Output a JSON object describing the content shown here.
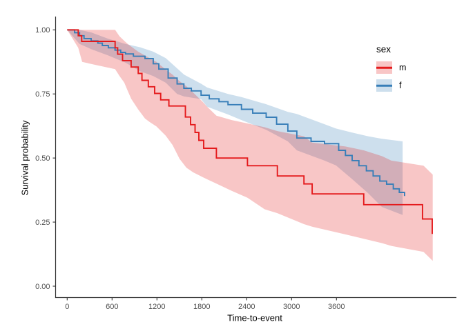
{
  "figure": {
    "background": "#ffffff"
  },
  "axis_colors": {
    "line": "#333333",
    "tick_text": "#4d4d4d",
    "title_text": "#000000"
  },
  "chart_data": {
    "type": "line",
    "subtype": "kaplan-meier-step-with-confidence-bands",
    "title": "",
    "xlabel": "Time-to-event",
    "ylabel": "Survival probability",
    "legend_title": "sex",
    "legend_position": "right-top",
    "grid": false,
    "theme": "classic",
    "xlim": [
      0,
      5200
    ],
    "ylim": [
      0,
      1.0
    ],
    "x_ticks": [
      0,
      600,
      1200,
      1800,
      2400,
      3000,
      3600
    ],
    "x_tick_labels": [
      "0",
      "600",
      "1200",
      "1800",
      "2400",
      "3000",
      "3600"
    ],
    "y_ticks": [
      0,
      0.25,
      0.5,
      0.75,
      1
    ],
    "y_tick_labels": [
      "0.00",
      "0.25",
      "0.50",
      "0.75",
      "1.00"
    ],
    "band_fill_opacity": 0.25,
    "series": [
      {
        "name": "m",
        "color": "#E41A1C",
        "steps": [
          [
            0,
            1.0
          ],
          [
            148,
            0.977
          ],
          [
            194,
            0.955
          ],
          [
            641,
            0.93
          ],
          [
            675,
            0.905
          ],
          [
            740,
            0.88
          ],
          [
            855,
            0.855
          ],
          [
            950,
            0.83
          ],
          [
            1000,
            0.803
          ],
          [
            1085,
            0.778
          ],
          [
            1170,
            0.752
          ],
          [
            1250,
            0.727
          ],
          [
            1360,
            0.703
          ],
          [
            1580,
            0.66
          ],
          [
            1650,
            0.63
          ],
          [
            1710,
            0.6
          ],
          [
            1760,
            0.569
          ],
          [
            1825,
            0.538
          ],
          [
            1995,
            0.5
          ],
          [
            2410,
            0.47
          ],
          [
            2810,
            0.43
          ],
          [
            3165,
            0.399
          ],
          [
            3275,
            0.36
          ],
          [
            3965,
            0.318
          ],
          [
            4750,
            0.262
          ],
          [
            4880,
            0.204
          ]
        ],
        "band": [
          [
            0,
            1.0,
            1.0
          ],
          [
            148,
            0.93,
            1.0
          ],
          [
            200,
            0.875,
            1.0
          ],
          [
            400,
            0.862,
            1.0
          ],
          [
            641,
            0.847,
            1.0
          ],
          [
            700,
            0.82,
            0.975
          ],
          [
            763,
            0.794,
            0.957
          ],
          [
            810,
            0.762,
            0.945
          ],
          [
            856,
            0.731,
            0.935
          ],
          [
            948,
            0.69,
            0.915
          ],
          [
            1040,
            0.654,
            0.9
          ],
          [
            1100,
            0.641,
            0.89
          ],
          [
            1194,
            0.623,
            0.875
          ],
          [
            1317,
            0.587,
            0.845
          ],
          [
            1409,
            0.551,
            0.825
          ],
          [
            1502,
            0.497,
            0.8
          ],
          [
            1594,
            0.462,
            0.78
          ],
          [
            1686,
            0.444,
            0.755
          ],
          [
            1809,
            0.426,
            0.72
          ],
          [
            1871,
            0.417,
            0.7
          ],
          [
            1995,
            0.4,
            0.665
          ],
          [
            2200,
            0.372,
            0.648
          ],
          [
            2410,
            0.345,
            0.635
          ],
          [
            2640,
            0.3,
            0.62
          ],
          [
            2810,
            0.285,
            0.605
          ],
          [
            3165,
            0.242,
            0.585
          ],
          [
            3275,
            0.232,
            0.56
          ],
          [
            3718,
            0.202,
            0.545
          ],
          [
            3965,
            0.185,
            0.53
          ],
          [
            4210,
            0.168,
            0.507
          ],
          [
            4333,
            0.157,
            0.49
          ],
          [
            4764,
            0.134,
            0.47
          ],
          [
            4887,
            0.099,
            0.435
          ]
        ]
      },
      {
        "name": "f",
        "color": "#377EB8",
        "steps": [
          [
            0,
            1.0
          ],
          [
            100,
            0.989
          ],
          [
            165,
            0.977
          ],
          [
            225,
            0.966
          ],
          [
            320,
            0.957
          ],
          [
            410,
            0.948
          ],
          [
            470,
            0.939
          ],
          [
            550,
            0.93
          ],
          [
            640,
            0.921
          ],
          [
            715,
            0.912
          ],
          [
            780,
            0.906
          ],
          [
            885,
            0.897
          ],
          [
            1040,
            0.888
          ],
          [
            1150,
            0.868
          ],
          [
            1225,
            0.847
          ],
          [
            1350,
            0.812
          ],
          [
            1470,
            0.789
          ],
          [
            1560,
            0.772
          ],
          [
            1660,
            0.762
          ],
          [
            1790,
            0.745
          ],
          [
            1900,
            0.731
          ],
          [
            2030,
            0.72
          ],
          [
            2150,
            0.708
          ],
          [
            2330,
            0.69
          ],
          [
            2480,
            0.675
          ],
          [
            2660,
            0.659
          ],
          [
            2800,
            0.632
          ],
          [
            2950,
            0.605
          ],
          [
            3070,
            0.578
          ],
          [
            3260,
            0.565
          ],
          [
            3440,
            0.556
          ],
          [
            3630,
            0.53
          ],
          [
            3720,
            0.51
          ],
          [
            3810,
            0.49
          ],
          [
            3900,
            0.47
          ],
          [
            4000,
            0.45
          ],
          [
            4090,
            0.43
          ],
          [
            4180,
            0.41
          ],
          [
            4270,
            0.398
          ],
          [
            4360,
            0.38
          ],
          [
            4440,
            0.366
          ],
          [
            4510,
            0.352
          ]
        ],
        "band": [
          [
            0,
            1.0,
            1.0
          ],
          [
            165,
            0.945,
            1.0
          ],
          [
            320,
            0.925,
            0.99
          ],
          [
            550,
            0.9,
            0.965
          ],
          [
            780,
            0.872,
            0.945
          ],
          [
            978,
            0.838,
            0.932
          ],
          [
            1150,
            0.82,
            0.915
          ],
          [
            1317,
            0.794,
            0.89
          ],
          [
            1470,
            0.75,
            0.85
          ],
          [
            1563,
            0.74,
            0.825
          ],
          [
            1790,
            0.73,
            0.79
          ],
          [
            1871,
            0.7,
            0.775
          ],
          [
            2150,
            0.67,
            0.75
          ],
          [
            2330,
            0.648,
            0.738
          ],
          [
            2660,
            0.61,
            0.71
          ],
          [
            2950,
            0.565,
            0.68
          ],
          [
            3070,
            0.53,
            0.672
          ],
          [
            3440,
            0.49,
            0.632
          ],
          [
            3594,
            0.471,
            0.615
          ],
          [
            3800,
            0.42,
            0.6
          ],
          [
            4023,
            0.363,
            0.585
          ],
          [
            4207,
            0.309,
            0.575
          ],
          [
            4484,
            0.278,
            0.565
          ]
        ]
      }
    ]
  }
}
